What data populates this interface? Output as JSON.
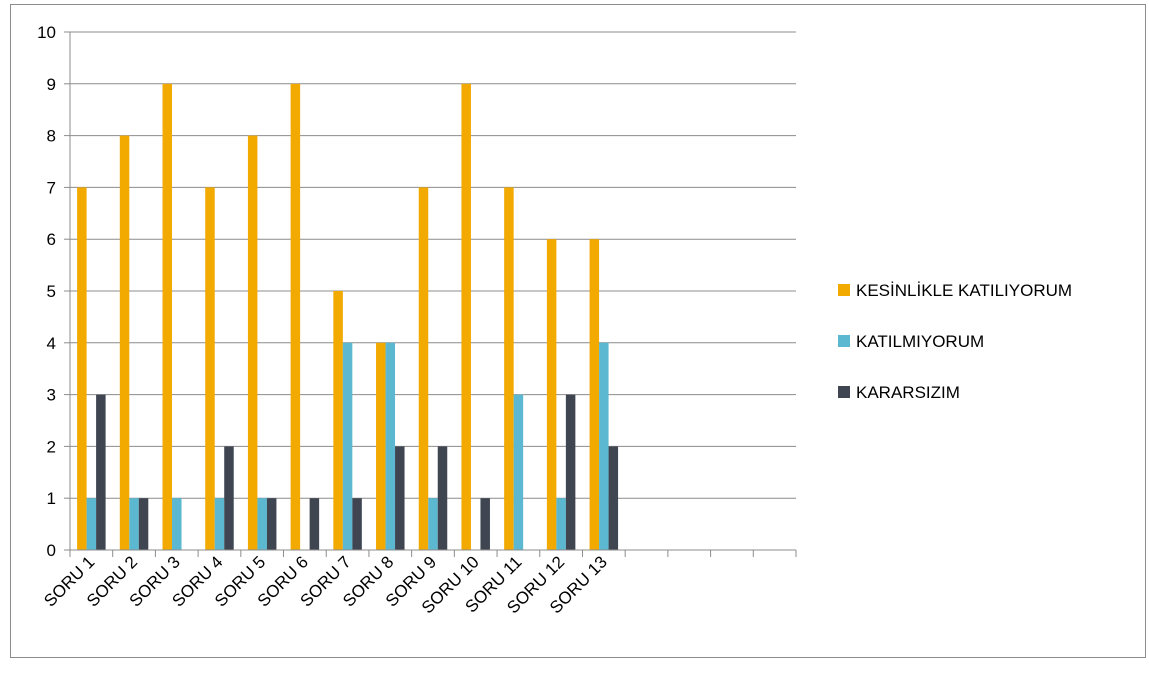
{
  "chart_data": {
    "type": "bar",
    "title": "",
    "xlabel": "",
    "ylabel": "",
    "ylim": [
      0,
      10
    ],
    "yticks": [
      0,
      1,
      2,
      3,
      4,
      5,
      6,
      7,
      8,
      9,
      10
    ],
    "grid": true,
    "legend_position": "right",
    "categories": [
      "SORU 1",
      "SORU 2",
      "SORU 3",
      "SORU 4",
      "SORU 5",
      "SORU 6",
      "SORU 7",
      "SORU 8",
      "SORU 9",
      "SORU 10",
      "SORU 11",
      "SORU 12",
      "SORU 13",
      "",
      "",
      "",
      ""
    ],
    "series": [
      {
        "name": "KESİNLİKLE KATILIYORUM",
        "color": "#F2A900",
        "values": [
          7,
          8,
          9,
          7,
          8,
          9,
          5,
          4,
          7,
          9,
          7,
          6,
          6,
          null,
          null,
          null,
          null
        ]
      },
      {
        "name": "KATILMIYORUM",
        "color": "#5BB8D0",
        "values": [
          1,
          1,
          1,
          1,
          1,
          0,
          4,
          4,
          1,
          0,
          3,
          1,
          4,
          null,
          null,
          null,
          null
        ]
      },
      {
        "name": "KARARSIZIM",
        "color": "#3F4652",
        "values": [
          3,
          1,
          0,
          2,
          1,
          1,
          1,
          2,
          2,
          1,
          0,
          3,
          2,
          null,
          null,
          null,
          null
        ]
      }
    ]
  }
}
